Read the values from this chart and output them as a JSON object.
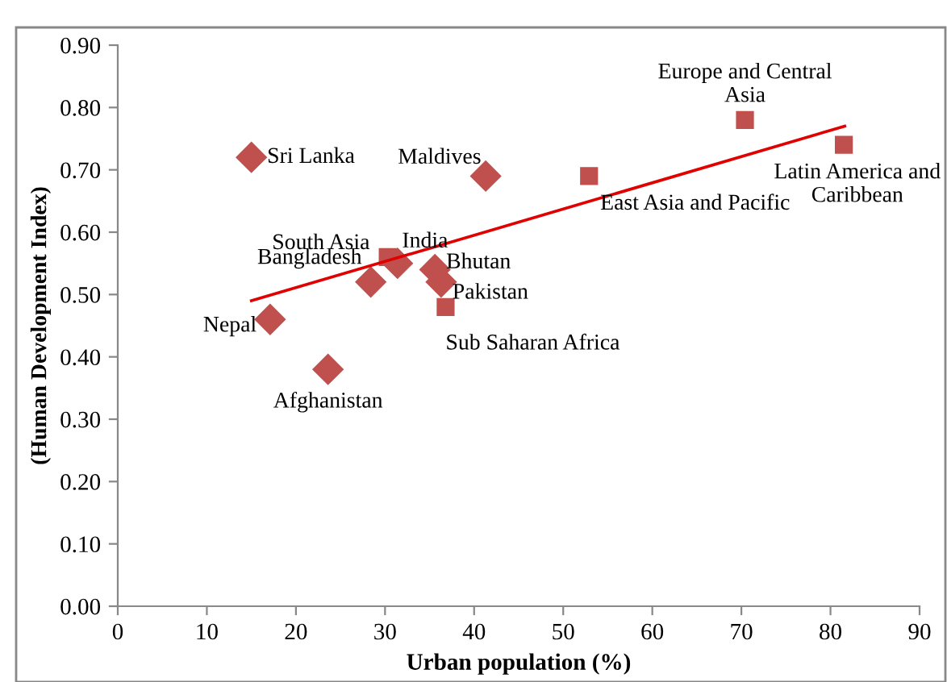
{
  "chart_data": {
    "type": "scatter",
    "xlabel": "Urban population (%)",
    "ylabel": "(Human Development Index)",
    "xlim": [
      0,
      90
    ],
    "xticks": [
      0,
      10,
      20,
      30,
      40,
      50,
      60,
      70,
      80,
      90
    ],
    "ylim": [
      0,
      0.9
    ],
    "yticks": [
      {
        "value": 0,
        "label": "0.00"
      },
      {
        "value": 0.1,
        "label": "0.10"
      },
      {
        "value": 0.2,
        "label": "0.20"
      },
      {
        "value": 0.3,
        "label": "0.30"
      },
      {
        "value": 0.4,
        "label": "0.40"
      },
      {
        "value": 0.5,
        "label": "0.50"
      },
      {
        "value": 0.6,
        "label": "0.60"
      },
      {
        "value": 0.7,
        "label": "0.70"
      },
      {
        "value": 0.8,
        "label": "0.80"
      },
      {
        "value": 0.9,
        "label": "0.90"
      }
    ],
    "grid": false,
    "series": [
      {
        "marker": "diamond",
        "color": "#c0504d",
        "x": [
          15.0,
          41.3,
          31.4,
          28.4,
          35.6,
          36.3,
          17.1,
          23.6
        ],
        "values": [
          0.72,
          0.69,
          0.55,
          0.52,
          0.54,
          0.52,
          0.46,
          0.38
        ]
      },
      {
        "type": "scatter",
        "marker": "square",
        "color": "#c0504d",
        "x": [
          30.3,
          36.8,
          52.9,
          70.4,
          81.5
        ],
        "values": [
          0.56,
          0.48,
          0.69,
          0.78,
          0.74
        ]
      },
      {
        "type": "line",
        "marker": "none",
        "color": "#e00000",
        "x": [
          15.0,
          81.6
        ],
        "values": [
          0.49,
          0.77
        ]
      }
    ],
    "annotations": [
      {
        "text": "Sri Lanka",
        "x": 15.0,
        "y": 0.72
      },
      {
        "text": "Maldives",
        "x": 41.3,
        "y": 0.69
      },
      {
        "text": "India",
        "x": 31.4,
        "y": 0.55
      },
      {
        "text": "Bangladesh",
        "x": 28.4,
        "y": 0.52
      },
      {
        "text": "Bhutan",
        "x": 35.6,
        "y": 0.54
      },
      {
        "text": "Pakistan",
        "x": 36.3,
        "y": 0.52
      },
      {
        "text": "Nepal",
        "x": 17.1,
        "y": 0.46
      },
      {
        "text": "Afghanistan",
        "x": 23.6,
        "y": 0.38
      },
      {
        "text": "South Asia",
        "x": 30.3,
        "y": 0.56
      },
      {
        "text": "Sub Saharan Africa",
        "x": 36.8,
        "y": 0.48
      },
      {
        "text": "East Asia and Pacific",
        "x": 52.9,
        "y": 0.69
      },
      {
        "text": "Europe and Central\nAsia",
        "x": 70.4,
        "y": 0.78
      },
      {
        "text": "Latin America and\nCaribbean",
        "x": 81.5,
        "y": 0.74
      }
    ]
  }
}
